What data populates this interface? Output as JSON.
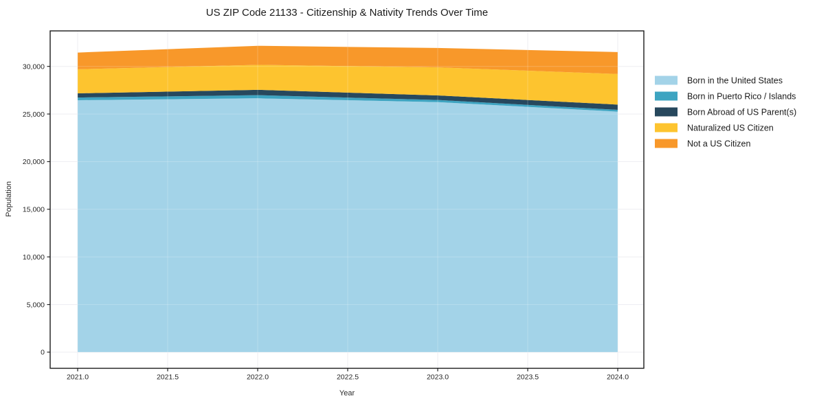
{
  "chart_data": {
    "type": "area",
    "stacked": true,
    "title": "US ZIP Code 21133 - Citizenship & Nativity Trends Over Time",
    "xlabel": "Year",
    "ylabel": "Population",
    "x": [
      2021,
      2022,
      2023,
      2024
    ],
    "series": [
      {
        "name": "Born in the United States",
        "color": "#a3d3e8",
        "values": [
          26450,
          26650,
          26250,
          25250
        ]
      },
      {
        "name": "Born in Puerto Rico / Islands",
        "color": "#3da4c1",
        "values": [
          280,
          330,
          220,
          190
        ]
      },
      {
        "name": "Born Abroad of US Parent(s)",
        "color": "#27485d",
        "values": [
          440,
          560,
          480,
          550
        ]
      },
      {
        "name": "Naturalized US Citizen",
        "color": "#fdc42f",
        "values": [
          2530,
          2620,
          2950,
          3210
        ]
      },
      {
        "name": "Not a US Citizen",
        "color": "#f8982a",
        "values": [
          1750,
          2000,
          2030,
          2300
        ]
      }
    ],
    "totals": [
      31450,
      32160,
      31930,
      31500
    ],
    "x_tick_values": [
      2021.0,
      2021.5,
      2022.0,
      2022.5,
      2023.0,
      2023.5,
      2024.0
    ],
    "x_tick_labels": [
      "2021.0",
      "2021.5",
      "2022.0",
      "2022.5",
      "2023.0",
      "2023.5",
      "2024.0"
    ],
    "y_tick_values": [
      0,
      5000,
      10000,
      15000,
      20000,
      25000,
      30000
    ],
    "y_tick_labels": [
      "0",
      "5,000",
      "10,000",
      "15,000",
      "20,000",
      "25,000",
      "30,000"
    ],
    "ylim": [
      0,
      30000
    ],
    "grid": true,
    "legend_position": "right-outside",
    "colors": {
      "frame": "#1a1a1a",
      "grid": "#e9e9ef",
      "tick_text": "#2b2b2b",
      "background": "#ffffff"
    }
  }
}
